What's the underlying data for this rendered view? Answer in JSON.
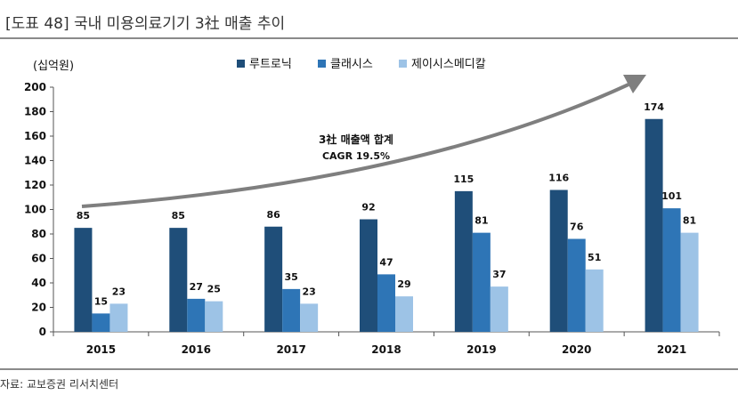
{
  "header": {
    "title": "[도표 48] 국내 미용의료기기 3社 매출 추이"
  },
  "footer": {
    "source": "자료: 교보증권 리서치센터"
  },
  "chart_data": {
    "type": "bar",
    "unit_label": "(십억원)",
    "categories": [
      "2015",
      "2016",
      "2017",
      "2018",
      "2019",
      "2020",
      "2021"
    ],
    "series": [
      {
        "name": "루트로닉",
        "color": "#1f4e79",
        "values": [
          85,
          85,
          86,
          92,
          115,
          116,
          174
        ]
      },
      {
        "name": "클래시스",
        "color": "#2e75b6",
        "values": [
          15,
          27,
          35,
          47,
          81,
          76,
          101
        ]
      },
      {
        "name": "제이시스메디칼",
        "color": "#9dc3e6",
        "values": [
          23,
          25,
          23,
          29,
          37,
          51,
          81
        ]
      }
    ],
    "ylim": [
      0,
      200
    ],
    "yticks": [
      0,
      20,
      40,
      60,
      80,
      100,
      120,
      140,
      160,
      180,
      200
    ],
    "grid": false,
    "legend_position": "top",
    "annotation": {
      "line1": "3社 매출액 합계",
      "line2": "CAGR 19.5%",
      "arrow_color": "#7f7f7f"
    }
  }
}
